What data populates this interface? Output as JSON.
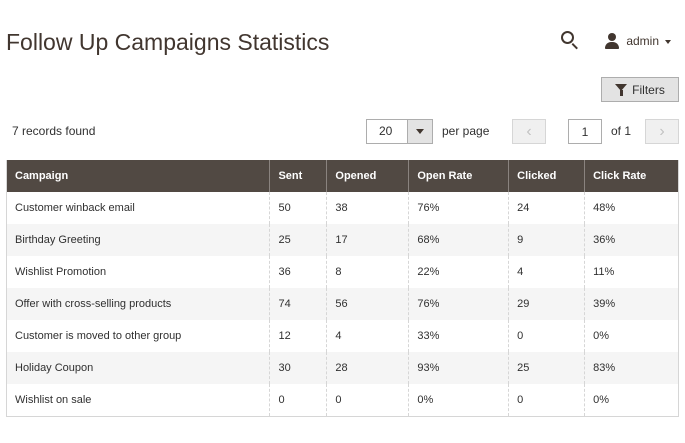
{
  "page": {
    "title": "Follow Up Campaigns Statistics"
  },
  "header": {
    "admin_name": "admin"
  },
  "toolbar": {
    "filters_label": "Filters",
    "records_found": "7 records found",
    "per_page_value": "20",
    "per_page_label": "per page",
    "current_page": "1",
    "total_pages_label": "of 1",
    "prev_glyph": "‹",
    "next_glyph": "›"
  },
  "grid": {
    "columns": [
      "Campaign",
      "Sent",
      "Opened",
      "Open Rate",
      "Clicked",
      "Click Rate"
    ],
    "rows": [
      [
        "Customer winback email",
        "50",
        "38",
        "76%",
        "24",
        "48%"
      ],
      [
        "Birthday Greeting",
        "25",
        "17",
        "68%",
        "9",
        "36%"
      ],
      [
        "Wishlist Promotion",
        "36",
        "8",
        "22%",
        "4",
        "11%"
      ],
      [
        "Offer with cross-selling products",
        "74",
        "56",
        "76%",
        "29",
        "39%"
      ],
      [
        "Customer is moved to other group",
        "12",
        "4",
        "33%",
        "0",
        "0%"
      ],
      [
        "Holiday Coupon",
        "30",
        "28",
        "93%",
        "25",
        "83%"
      ],
      [
        "Wishlist on sale",
        "0",
        "0",
        "0%",
        "0",
        "0%"
      ]
    ]
  },
  "icons": {
    "search": "search-icon",
    "user": "user-icon",
    "caret": "chevron-down-icon",
    "filter": "funnel-icon"
  },
  "colors": {
    "title": "#41362f",
    "header_bg": "#514943",
    "filters_bg": "#e3e3e3",
    "row_alt": "#f5f5f5"
  }
}
